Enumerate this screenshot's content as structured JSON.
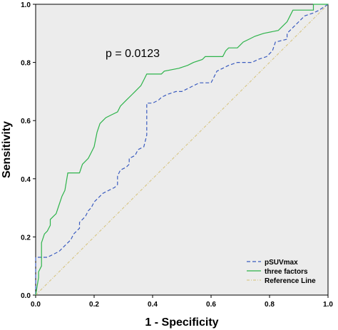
{
  "chart_data": {
    "type": "line",
    "title": "",
    "xlabel": "1 - Specificity",
    "ylabel": "Sensitivity",
    "xlim": [
      0,
      1
    ],
    "ylim": [
      0,
      1
    ],
    "x_ticks": [
      "0.0",
      "0.2",
      "0.4",
      "0.6",
      "0.8",
      "1.0"
    ],
    "y_ticks": [
      "0.0",
      "0.2",
      "0.4",
      "0.6",
      "0.8",
      "1.0"
    ],
    "grid": false,
    "background_color": "#ececec",
    "annotation": "p = 0.0123",
    "legend_position": "bottom-right",
    "series": [
      {
        "name": "pSUVmax",
        "color": "#3a5bbf",
        "style": "dashed",
        "points": [
          [
            0.0,
            0.0
          ],
          [
            0.0,
            0.13
          ],
          [
            0.04,
            0.13
          ],
          [
            0.06,
            0.14
          ],
          [
            0.08,
            0.15
          ],
          [
            0.09,
            0.16
          ],
          [
            0.11,
            0.18
          ],
          [
            0.12,
            0.19
          ],
          [
            0.13,
            0.21
          ],
          [
            0.14,
            0.22
          ],
          [
            0.15,
            0.23
          ],
          [
            0.15,
            0.25
          ],
          [
            0.16,
            0.26
          ],
          [
            0.17,
            0.27
          ],
          [
            0.18,
            0.29
          ],
          [
            0.19,
            0.3
          ],
          [
            0.2,
            0.32
          ],
          [
            0.21,
            0.33
          ],
          [
            0.22,
            0.34
          ],
          [
            0.23,
            0.35
          ],
          [
            0.25,
            0.36
          ],
          [
            0.27,
            0.37
          ],
          [
            0.28,
            0.38
          ],
          [
            0.28,
            0.41
          ],
          [
            0.29,
            0.43
          ],
          [
            0.31,
            0.44
          ],
          [
            0.32,
            0.45
          ],
          [
            0.32,
            0.47
          ],
          [
            0.34,
            0.48
          ],
          [
            0.35,
            0.5
          ],
          [
            0.37,
            0.51
          ],
          [
            0.38,
            0.55
          ],
          [
            0.38,
            0.66
          ],
          [
            0.4,
            0.66
          ],
          [
            0.42,
            0.67
          ],
          [
            0.43,
            0.68
          ],
          [
            0.45,
            0.69
          ],
          [
            0.48,
            0.7
          ],
          [
            0.5,
            0.7
          ],
          [
            0.52,
            0.71
          ],
          [
            0.54,
            0.72
          ],
          [
            0.56,
            0.73
          ],
          [
            0.6,
            0.73
          ],
          [
            0.61,
            0.75
          ],
          [
            0.62,
            0.77
          ],
          [
            0.64,
            0.78
          ],
          [
            0.66,
            0.79
          ],
          [
            0.69,
            0.8
          ],
          [
            0.74,
            0.8
          ],
          [
            0.76,
            0.81
          ],
          [
            0.79,
            0.82
          ],
          [
            0.81,
            0.84
          ],
          [
            0.82,
            0.87
          ],
          [
            0.86,
            0.88
          ],
          [
            0.86,
            0.9
          ],
          [
            0.88,
            0.92
          ],
          [
            0.9,
            0.94
          ],
          [
            0.92,
            0.96
          ],
          [
            0.95,
            0.97
          ],
          [
            0.97,
            0.98
          ],
          [
            1.0,
            1.0
          ]
        ]
      },
      {
        "name": "three factors",
        "color": "#2db34a",
        "style": "solid",
        "points": [
          [
            0.0,
            0.0
          ],
          [
            0.01,
            0.06
          ],
          [
            0.01,
            0.08
          ],
          [
            0.02,
            0.1
          ],
          [
            0.02,
            0.18
          ],
          [
            0.03,
            0.21
          ],
          [
            0.04,
            0.22
          ],
          [
            0.05,
            0.24
          ],
          [
            0.05,
            0.26
          ],
          [
            0.06,
            0.27
          ],
          [
            0.07,
            0.28
          ],
          [
            0.08,
            0.31
          ],
          [
            0.09,
            0.34
          ],
          [
            0.1,
            0.36
          ],
          [
            0.11,
            0.42
          ],
          [
            0.15,
            0.42
          ],
          [
            0.16,
            0.45
          ],
          [
            0.18,
            0.47
          ],
          [
            0.19,
            0.49
          ],
          [
            0.2,
            0.51
          ],
          [
            0.21,
            0.56
          ],
          [
            0.22,
            0.59
          ],
          [
            0.23,
            0.6
          ],
          [
            0.24,
            0.61
          ],
          [
            0.26,
            0.62
          ],
          [
            0.28,
            0.63
          ],
          [
            0.29,
            0.65
          ],
          [
            0.31,
            0.67
          ],
          [
            0.33,
            0.69
          ],
          [
            0.34,
            0.7
          ],
          [
            0.36,
            0.72
          ],
          [
            0.37,
            0.74
          ],
          [
            0.38,
            0.76
          ],
          [
            0.43,
            0.76
          ],
          [
            0.44,
            0.77
          ],
          [
            0.49,
            0.78
          ],
          [
            0.52,
            0.79
          ],
          [
            0.54,
            0.8
          ],
          [
            0.57,
            0.81
          ],
          [
            0.58,
            0.82
          ],
          [
            0.64,
            0.82
          ],
          [
            0.65,
            0.84
          ],
          [
            0.66,
            0.85
          ],
          [
            0.69,
            0.85
          ],
          [
            0.7,
            0.86
          ],
          [
            0.71,
            0.87
          ],
          [
            0.73,
            0.88
          ],
          [
            0.75,
            0.89
          ],
          [
            0.78,
            0.9
          ],
          [
            0.83,
            0.91
          ],
          [
            0.85,
            0.93
          ],
          [
            0.86,
            0.94
          ],
          [
            0.87,
            0.96
          ],
          [
            0.88,
            0.98
          ],
          [
            0.95,
            0.98
          ],
          [
            0.95,
            1.0
          ],
          [
            1.0,
            1.0
          ]
        ]
      },
      {
        "name": "Reference Line",
        "color": "#d9c88a",
        "style": "dashdot",
        "points": [
          [
            0.0,
            0.0
          ],
          [
            1.0,
            1.0
          ]
        ]
      }
    ]
  }
}
